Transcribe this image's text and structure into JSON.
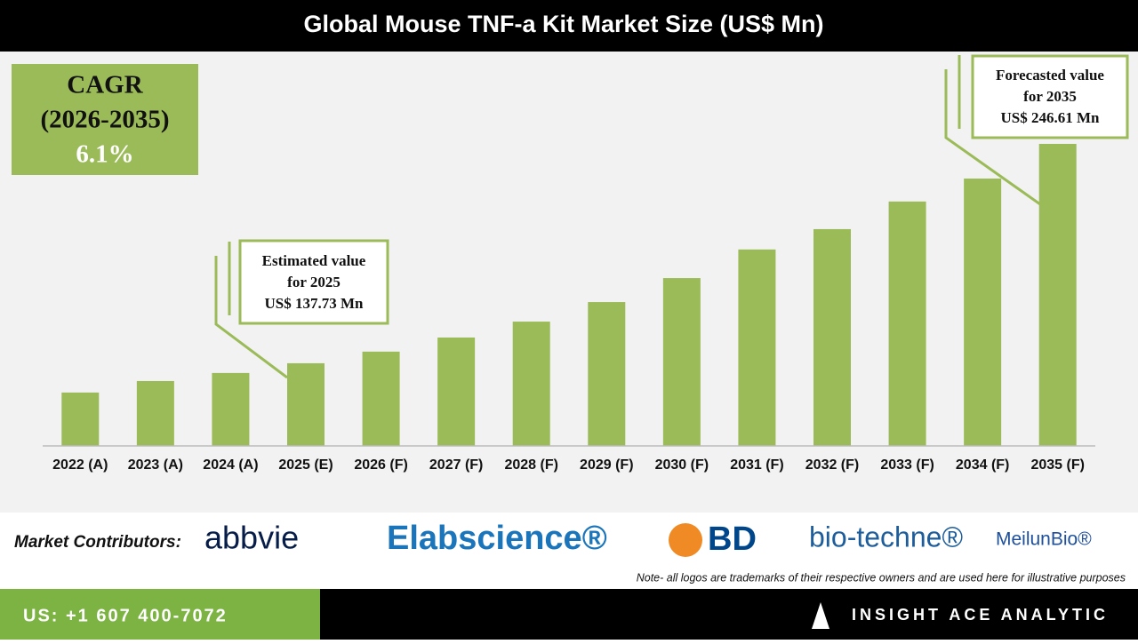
{
  "chart_data": {
    "type": "bar",
    "title": "Global Mouse TNF-a Kit Market Size (US$ Mn)",
    "categories": [
      "2022 (A)",
      "2023 (A)",
      "2024 (A)",
      "2025 (E)",
      "2026 (F)",
      "2027 (F)",
      "2028 (F)",
      "2029 (F)",
      "2030 (F)",
      "2031 (F)",
      "2032 (F)",
      "2033 (F)",
      "2034 (F)",
      "2035 (F)"
    ],
    "values": [
      123.2,
      128.9,
      132.9,
      137.73,
      143.5,
      150.5,
      158.4,
      168.1,
      180.0,
      194.2,
      204.3,
      218.0,
      229.4,
      246.61
    ],
    "color": "#9bbb59",
    "ylim": [
      96.7,
      266
    ],
    "cagr": [
      "CAGR",
      "(2026-2035)",
      "6.1%"
    ],
    "annotations": [
      [
        "Estimated value",
        "for 2025",
        "US$ 137.73 Mn"
      ],
      [
        "Forecasted value",
        "for 2035",
        "US$ 246.61 Mn"
      ]
    ]
  },
  "contributors": {
    "label": "Market Contributors:",
    "logos": [
      "abbvie",
      "Elabscience®",
      "BD",
      "bio-techne®",
      "MeilunBio®"
    ],
    "note": "Note- all logos are trademarks of their respective owners and are used here for illustrative purposes"
  },
  "footer": {
    "phone": "US: +1 607 400-7072",
    "brand": "INSIGHT ACE ANALYTIC"
  }
}
